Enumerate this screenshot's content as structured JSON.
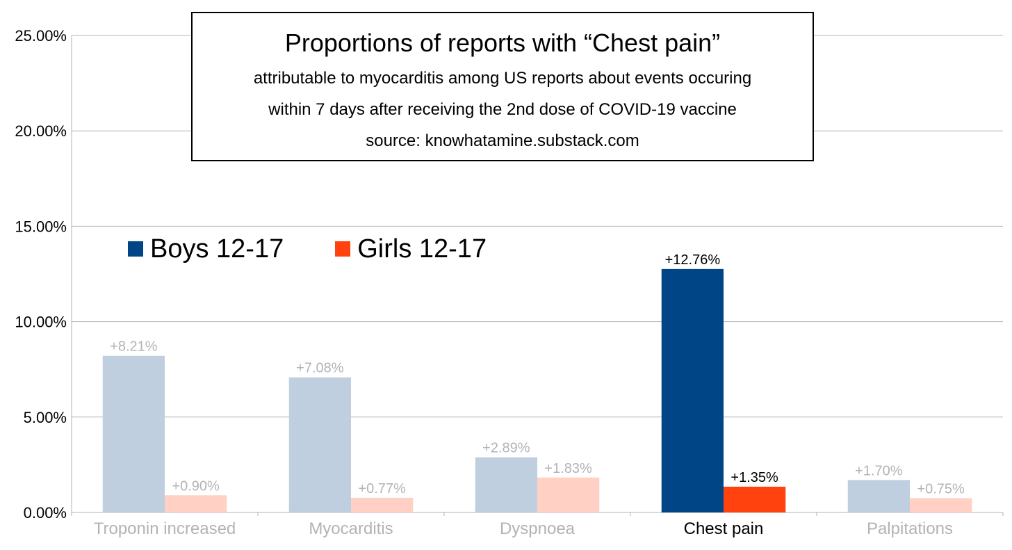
{
  "chart_data": {
    "type": "bar",
    "title": "Proportions of reports with “Chest pain”",
    "subtitle_lines": [
      "attributable to myocarditis among US reports about events occuring",
      "within 7 days after receiving the 2nd dose of COVID-19 vaccine",
      "source: knowhatamine.substack.com"
    ],
    "categories": [
      "Troponin increased",
      "Myocarditis",
      "Dyspnoea",
      "Chest pain",
      "Palpitations"
    ],
    "highlight_category": "Chest pain",
    "series": [
      {
        "name": "Boys 12-17",
        "values": [
          8.21,
          7.08,
          2.89,
          12.76,
          1.7
        ],
        "labels": [
          "+8.21%",
          "+7.08%",
          "+2.89%",
          "+12.76%",
          "+1.70%"
        ],
        "color": "#004586",
        "faded_color": "#bfcfe0"
      },
      {
        "name": "Girls 12-17",
        "values": [
          0.9,
          0.77,
          1.83,
          1.35,
          0.75
        ],
        "labels": [
          "+0.90%",
          "+0.77%",
          "+1.83%",
          "+1.35%",
          "+0.75%"
        ],
        "color": "#ff420e",
        "faded_color": "#ffd0c3"
      }
    ],
    "ylim": [
      0,
      25
    ],
    "yticks": [
      0,
      5,
      10,
      15,
      20,
      25
    ],
    "ytick_labels": [
      "0.00%",
      "5.00%",
      "10.00%",
      "15.00%",
      "20.00%",
      "25.00%"
    ],
    "xlabel": "",
    "ylabel": "",
    "grid": true,
    "legend_position": "top-left",
    "faded_text_color": "#b3b3b3",
    "highlight_text_color": "#000000"
  }
}
